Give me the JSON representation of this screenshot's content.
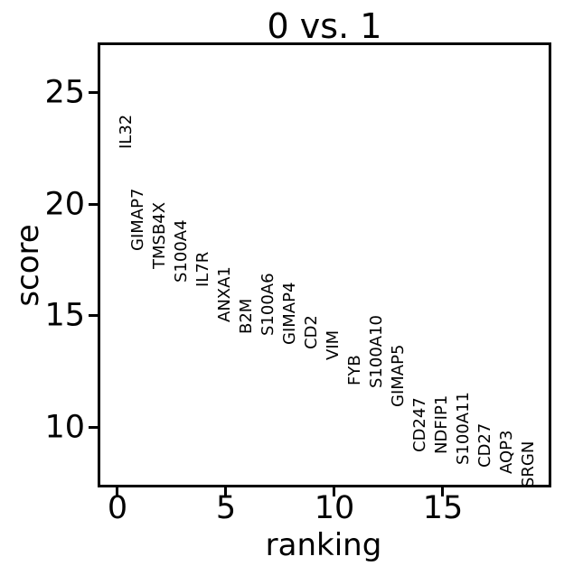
{
  "figure": {
    "title": "0 vs. 1",
    "xlabel": "ranking",
    "ylabel": "score"
  },
  "colors": {
    "background": "#ffffff",
    "spine": "#000000",
    "grid": "#d2d2d2",
    "text": "#000000"
  },
  "chart_data": {
    "type": "scatter",
    "title": "0 vs. 1",
    "xlabel": "ranking",
    "ylabel": "score",
    "grid": true,
    "xlim": [
      -0.9,
      20.0
    ],
    "ylim": [
      7.3,
      27.3
    ],
    "x_ticks": [
      0,
      5,
      10,
      15
    ],
    "y_ticks": [
      10,
      15,
      20,
      25
    ],
    "points": [
      {
        "gene": "IL32",
        "rank": 0,
        "score": 22.5,
        "dx": 11
      },
      {
        "gene": "GIMAP7",
        "rank": 1,
        "score": 17.9
      },
      {
        "gene": "TMSB4X",
        "rank": 2,
        "score": 17.1
      },
      {
        "gene": "S100A4",
        "rank": 3,
        "score": 16.5
      },
      {
        "gene": "IL7R",
        "rank": 4,
        "score": 16.3
      },
      {
        "gene": "ANXA1",
        "rank": 5,
        "score": 14.7
      },
      {
        "gene": "B2M",
        "rank": 6,
        "score": 14.2
      },
      {
        "gene": "S100A6",
        "rank": 7,
        "score": 14.1
      },
      {
        "gene": "GIMAP4",
        "rank": 8,
        "score": 13.7
      },
      {
        "gene": "CD2",
        "rank": 9,
        "score": 13.5
      },
      {
        "gene": "VIM",
        "rank": 10,
        "score": 13.0
      },
      {
        "gene": "FYB",
        "rank": 11,
        "score": 11.9
      },
      {
        "gene": "S100A10",
        "rank": 12,
        "score": 11.75
      },
      {
        "gene": "GIMAP5",
        "rank": 13,
        "score": 10.9
      },
      {
        "gene": "CD247",
        "rank": 14,
        "score": 8.9
      },
      {
        "gene": "NDFIP1",
        "rank": 15,
        "score": 8.8
      },
      {
        "gene": "S100A11",
        "rank": 16,
        "score": 8.3
      },
      {
        "gene": "CD27",
        "rank": 17,
        "score": 8.2
      },
      {
        "gene": "AQP3",
        "rank": 18,
        "score": 7.9
      },
      {
        "gene": "SRGN",
        "rank": 19,
        "score": 7.3
      }
    ]
  }
}
